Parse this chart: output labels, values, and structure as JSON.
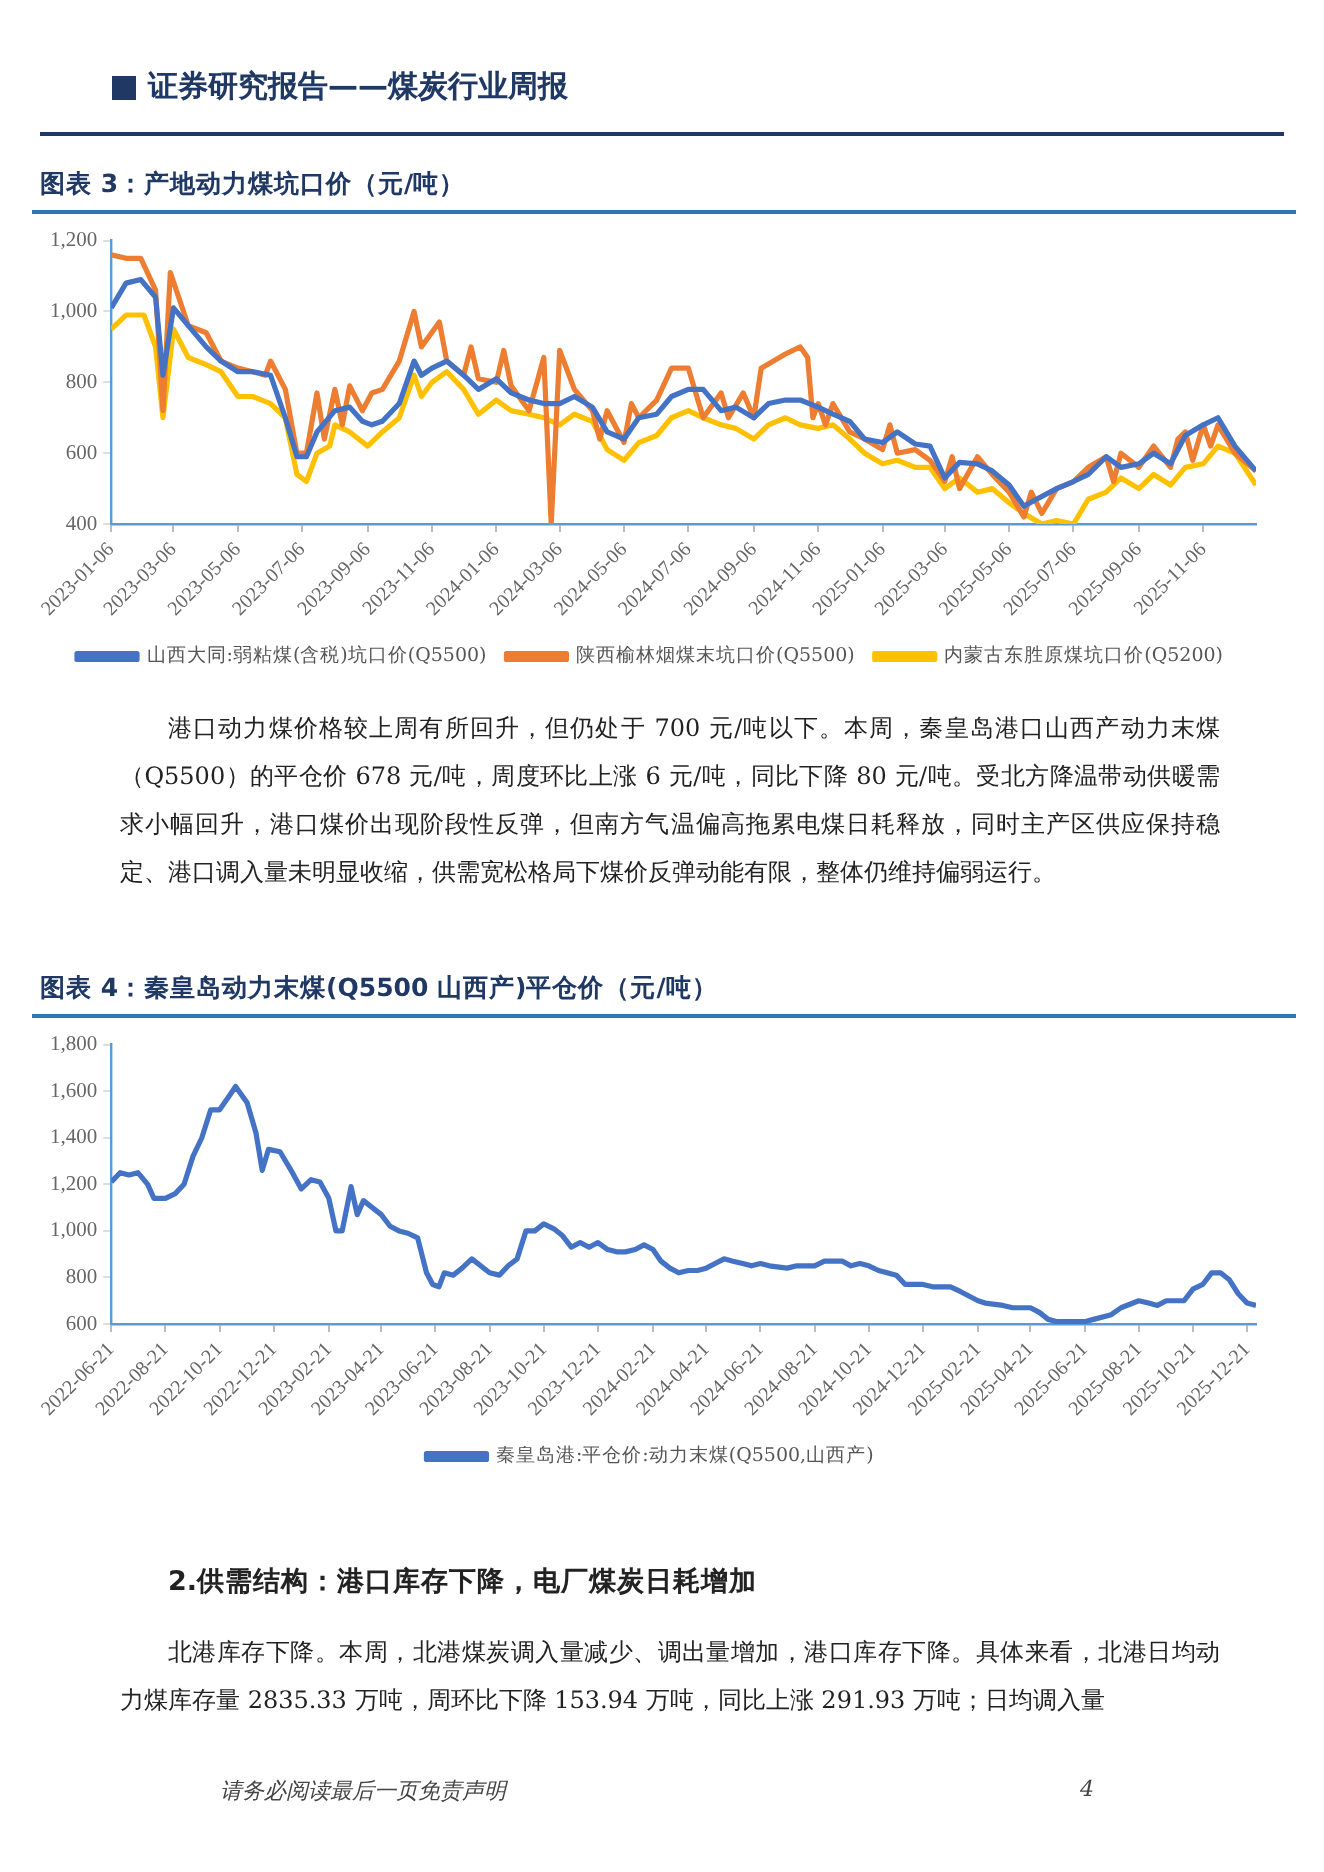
{
  "chart_data": [
    {
      "type": "line",
      "title": "图表 3：产地动力煤坑口价（元/吨）",
      "legend": "bottom",
      "marker": "none",
      "xlim": [
        "2023-01-06",
        "2025-12-26"
      ],
      "xticks": [
        "2023-01-06",
        "2023-03-06",
        "2023-05-06",
        "2023-07-06",
        "2023-09-06",
        "2023-11-06",
        "2024-01-06",
        "2024-03-06",
        "2024-05-06",
        "2024-07-06",
        "2024-09-06",
        "2024-11-06",
        "2025-01-06",
        "2025-03-06",
        "2025-05-06",
        "2025-07-06",
        "2025-09-06",
        "2025-11-06"
      ],
      "ylim": [
        400,
        1200
      ],
      "yticks": [
        {
          "value": 400,
          "label": "400"
        },
        {
          "value": 600,
          "label": "600"
        },
        {
          "value": 800,
          "label": "800"
        },
        {
          "value": 1000,
          "label": "1,000"
        },
        {
          "value": 1200,
          "label": "1,200"
        }
      ],
      "series": [
        {
          "name": "山西大同:弱粘煤(含税)坑口价(Q5500)",
          "color": "#4472c4",
          "x": [
            "2023-01-06",
            "2023-01-20",
            "2023-02-03",
            "2023-02-17",
            "2023-02-24",
            "2023-03-06",
            "2023-03-20",
            "2023-04-06",
            "2023-04-20",
            "2023-05-06",
            "2023-05-20",
            "2023-06-06",
            "2023-06-20",
            "2023-07-01",
            "2023-07-10",
            "2023-07-20",
            "2023-08-06",
            "2023-08-20",
            "2023-09-01",
            "2023-09-10",
            "2023-09-20",
            "2023-10-06",
            "2023-10-20",
            "2023-10-27",
            "2023-11-06",
            "2023-11-20",
            "2023-12-06",
            "2023-12-20",
            "2024-01-06",
            "2024-01-20",
            "2024-02-06",
            "2024-02-20",
            "2024-03-06",
            "2024-03-20",
            "2024-04-06",
            "2024-04-20",
            "2024-05-06",
            "2024-05-20",
            "2024-06-06",
            "2024-06-20",
            "2024-07-06",
            "2024-07-20",
            "2024-08-06",
            "2024-08-20",
            "2024-09-06",
            "2024-09-20",
            "2024-10-06",
            "2024-10-20",
            "2024-11-06",
            "2024-11-20",
            "2024-12-06",
            "2024-12-20",
            "2025-01-06",
            "2025-01-20",
            "2025-02-06",
            "2025-02-20",
            "2025-03-06",
            "2025-03-20",
            "2025-04-06",
            "2025-04-20",
            "2025-05-06",
            "2025-05-20",
            "2025-06-01",
            "2025-06-20",
            "2025-07-06",
            "2025-07-20",
            "2025-08-06",
            "2025-08-20",
            "2025-09-06",
            "2025-09-20",
            "2025-10-06",
            "2025-10-20",
            "2025-11-06",
            "2025-11-20",
            "2025-12-06",
            "2025-12-26"
          ],
          "values": [
            1010,
            1080,
            1090,
            1040,
            820,
            1010,
            960,
            900,
            860,
            830,
            830,
            820,
            700,
            590,
            590,
            660,
            720,
            730,
            690,
            680,
            690,
            740,
            860,
            820,
            840,
            860,
            820,
            780,
            810,
            770,
            750,
            740,
            740,
            760,
            730,
            660,
            640,
            700,
            710,
            760,
            780,
            780,
            720,
            730,
            700,
            740,
            750,
            750,
            730,
            710,
            690,
            640,
            630,
            660,
            626,
            620,
            530,
            574,
            570,
            550,
            510,
            450,
            470,
            500,
            520,
            540,
            590,
            560,
            570,
            600,
            570,
            650,
            680,
            700,
            620,
            550
          ]
        },
        {
          "name": "陕西榆林烟煤末坑口价(Q5500)",
          "color": "#ed7d31",
          "x": [
            "2023-01-06",
            "2023-01-20",
            "2023-02-03",
            "2023-02-17",
            "2023-02-24",
            "2023-03-03",
            "2023-03-20",
            "2023-04-06",
            "2023-04-20",
            "2023-05-06",
            "2023-05-20",
            "2023-06-01",
            "2023-06-06",
            "2023-06-20",
            "2023-07-01",
            "2023-07-10",
            "2023-07-20",
            "2023-07-27",
            "2023-08-06",
            "2023-08-13",
            "2023-08-20",
            "2023-09-01",
            "2023-09-10",
            "2023-09-20",
            "2023-10-06",
            "2023-10-20",
            "2023-10-27",
            "2023-11-13",
            "2023-11-20",
            "2023-12-06",
            "2023-12-13",
            "2023-12-20",
            "2024-01-06",
            "2024-01-13",
            "2024-01-20",
            "2024-02-06",
            "2024-02-20",
            "2024-02-27",
            "2024-03-06",
            "2024-03-20",
            "2024-04-06",
            "2024-04-13",
            "2024-04-20",
            "2024-05-06",
            "2024-05-13",
            "2024-05-20",
            "2024-06-06",
            "2024-06-20",
            "2024-07-06",
            "2024-07-20",
            "2024-08-06",
            "2024-08-13",
            "2024-08-27",
            "2024-09-06",
            "2024-09-13",
            "2024-10-06",
            "2024-10-20",
            "2024-10-27",
            "2024-11-01",
            "2024-11-06",
            "2024-11-13",
            "2024-11-20",
            "2024-12-06",
            "2024-12-20",
            "2025-01-06",
            "2025-01-13",
            "2025-01-20",
            "2025-02-06",
            "2025-02-20",
            "2025-03-06",
            "2025-03-13",
            "2025-03-20",
            "2025-04-06",
            "2025-04-20",
            "2025-05-06",
            "2025-05-20",
            "2025-05-27",
            "2025-06-06",
            "2025-06-20",
            "2025-07-06",
            "2025-07-20",
            "2025-08-06",
            "2025-08-13",
            "2025-08-20",
            "2025-09-06",
            "2025-09-20",
            "2025-10-06",
            "2025-10-13",
            "2025-10-20",
            "2025-10-27",
            "2025-11-06",
            "2025-11-13",
            "2025-11-20",
            "2025-12-06",
            "2025-12-26"
          ],
          "values": [
            1160,
            1150,
            1150,
            1060,
            720,
            1110,
            960,
            940,
            860,
            840,
            830,
            820,
            860,
            780,
            600,
            600,
            770,
            640,
            780,
            680,
            790,
            720,
            770,
            780,
            860,
            1000,
            900,
            970,
            860,
            820,
            900,
            810,
            800,
            890,
            790,
            720,
            870,
            400,
            890,
            780,
            720,
            640,
            720,
            630,
            740,
            700,
            750,
            840,
            840,
            700,
            770,
            700,
            770,
            700,
            840,
            880,
            900,
            870,
            700,
            740,
            680,
            740,
            660,
            640,
            610,
            680,
            600,
            610,
            580,
            520,
            590,
            500,
            590,
            540,
            490,
            420,
            490,
            430,
            500,
            520,
            560,
            590,
            520,
            600,
            560,
            620,
            560,
            640,
            660,
            580,
            680,
            620,
            680,
            600,
            550
          ]
        },
        {
          "name": "内蒙古东胜原煤坑口价(Q5200)",
          "color": "#ffc000",
          "x": [
            "2023-01-06",
            "2023-01-20",
            "2023-02-06",
            "2023-02-17",
            "2023-02-24",
            "2023-03-06",
            "2023-03-20",
            "2023-04-06",
            "2023-04-20",
            "2023-05-06",
            "2023-05-20",
            "2023-06-06",
            "2023-06-20",
            "2023-07-01",
            "2023-07-10",
            "2023-07-20",
            "2023-08-01",
            "2023-08-06",
            "2023-08-20",
            "2023-09-06",
            "2023-09-20",
            "2023-10-06",
            "2023-10-20",
            "2023-10-27",
            "2023-11-06",
            "2023-11-20",
            "2023-12-06",
            "2023-12-20",
            "2024-01-06",
            "2024-01-20",
            "2024-02-06",
            "2024-02-20",
            "2024-03-06",
            "2024-03-20",
            "2024-04-06",
            "2024-04-20",
            "2024-05-06",
            "2024-05-20",
            "2024-06-06",
            "2024-06-20",
            "2024-07-06",
            "2024-07-20",
            "2024-08-06",
            "2024-08-20",
            "2024-09-06",
            "2024-09-20",
            "2024-10-06",
            "2024-10-20",
            "2024-11-06",
            "2024-11-20",
            "2024-12-06",
            "2024-12-20",
            "2025-01-06",
            "2025-01-20",
            "2025-02-06",
            "2025-02-20",
            "2025-03-06",
            "2025-03-20",
            "2025-04-06",
            "2025-04-20",
            "2025-05-06",
            "2025-05-20",
            "2025-06-06",
            "2025-06-20",
            "2025-07-06",
            "2025-07-20",
            "2025-08-06",
            "2025-08-20",
            "2025-09-06",
            "2025-09-20",
            "2025-10-06",
            "2025-10-20",
            "2025-11-06",
            "2025-11-20",
            "2025-12-06",
            "2025-12-26"
          ],
          "values": [
            950,
            990,
            990,
            900,
            700,
            950,
            870,
            850,
            830,
            760,
            760,
            740,
            700,
            540,
            520,
            600,
            620,
            680,
            660,
            620,
            660,
            700,
            820,
            760,
            800,
            830,
            780,
            710,
            750,
            720,
            710,
            700,
            680,
            710,
            690,
            610,
            580,
            630,
            650,
            700,
            720,
            700,
            680,
            670,
            640,
            680,
            700,
            680,
            670,
            680,
            640,
            600,
            570,
            580,
            560,
            560,
            500,
            530,
            490,
            500,
            460,
            430,
            400,
            410,
            400,
            470,
            490,
            530,
            500,
            540,
            510,
            560,
            570,
            620,
            600,
            510
          ]
        }
      ],
      "annotations": [
        "证券研究报告——煤炭行业周报",
        "港口动力煤价格较上周有所回升，但仍处于 700 元/吨以下。本周，秦皇岛港口山西产动力末煤（Q5500）的平仓价 678 元/吨，周度环比上涨 6 元/吨，同比下降 80 元/吨。受北方降温带动供暖需求小幅回升，港口煤价出现阶段性反弹，但南方气温偏高拖累电煤日耗释放，同时主产区供应保持稳定、港口调入量未明显收缩，供需宽松格局下煤价反弹动能有限，整体仍维持偏弱运行。"
      ]
    },
    {
      "type": "line",
      "title": "图表 4：秦皇岛动力末煤(Q5500 山西产)平仓价（元/吨）",
      "legend": "bottom",
      "marker": "none",
      "xlim": [
        "2022-06-21",
        "2025-12-31"
      ],
      "xticks": [
        "2022-06-21",
        "2022-08-21",
        "2022-10-21",
        "2022-12-21",
        "2023-02-21",
        "2023-04-21",
        "2023-06-21",
        "2023-08-21",
        "2023-10-21",
        "2023-12-21",
        "2024-02-21",
        "2024-04-21",
        "2024-06-21",
        "2024-08-21",
        "2024-10-21",
        "2024-12-21",
        "2025-02-21",
        "2025-04-21",
        "2025-06-21",
        "2025-08-21",
        "2025-10-21",
        "2025-12-21"
      ],
      "ylim": [
        600,
        1800
      ],
      "yticks": [
        {
          "value": 600,
          "label": "600"
        },
        {
          "value": 800,
          "label": "800"
        },
        {
          "value": 1000,
          "label": "1,000"
        },
        {
          "value": 1200,
          "label": "1,200"
        },
        {
          "value": 1400,
          "label": "1,400"
        },
        {
          "value": 1600,
          "label": "1,600"
        },
        {
          "value": 1800,
          "label": "1,800"
        }
      ],
      "series": [
        {
          "name": "秦皇岛港:平仓价:动力末煤(Q5500,山西产)",
          "color": "#4472c4",
          "x": [
            "2022-06-21",
            "2022-07-01",
            "2022-07-11",
            "2022-07-21",
            "2022-08-01",
            "2022-08-08",
            "2022-08-21",
            "2022-09-01",
            "2022-09-11",
            "2022-09-21",
            "2022-10-01",
            "2022-10-11",
            "2022-10-21",
            "2022-11-01",
            "2022-11-08",
            "2022-11-21",
            "2022-12-01",
            "2022-12-08",
            "2022-12-15",
            "2022-12-28",
            "2023-01-11",
            "2023-01-21",
            "2023-02-01",
            "2023-02-11",
            "2023-02-21",
            "2023-03-01",
            "2023-03-08",
            "2023-03-18",
            "2023-03-25",
            "2023-04-01",
            "2023-04-11",
            "2023-04-21",
            "2023-05-01",
            "2023-05-11",
            "2023-05-21",
            "2023-06-01",
            "2023-06-11",
            "2023-06-18",
            "2023-06-25",
            "2023-07-01",
            "2023-07-11",
            "2023-07-21",
            "2023-08-01",
            "2023-08-11",
            "2023-08-21",
            "2023-09-01",
            "2023-09-11",
            "2023-09-21",
            "2023-10-01",
            "2023-10-11",
            "2023-10-21",
            "2023-11-01",
            "2023-11-11",
            "2023-11-21",
            "2023-12-01",
            "2023-12-11",
            "2023-12-21",
            "2024-01-01",
            "2024-01-11",
            "2024-01-21",
            "2024-02-01",
            "2024-02-11",
            "2024-02-21",
            "2024-03-01",
            "2024-03-11",
            "2024-03-21",
            "2024-04-01",
            "2024-04-11",
            "2024-04-21",
            "2024-05-01",
            "2024-05-11",
            "2024-05-21",
            "2024-06-01",
            "2024-06-11",
            "2024-06-21",
            "2024-07-01",
            "2024-07-21",
            "2024-08-01",
            "2024-08-21",
            "2024-09-01",
            "2024-09-21",
            "2024-10-01",
            "2024-10-11",
            "2024-10-21",
            "2024-11-01",
            "2024-11-21",
            "2024-12-01",
            "2024-12-11",
            "2024-12-21",
            "2025-01-01",
            "2025-01-21",
            "2025-02-01",
            "2025-02-21",
            "2025-03-01",
            "2025-03-21",
            "2025-04-01",
            "2025-04-21",
            "2025-05-01",
            "2025-05-11",
            "2025-05-21",
            "2025-06-01",
            "2025-06-21",
            "2025-07-01",
            "2025-07-21",
            "2025-08-01",
            "2025-08-21",
            "2025-09-01",
            "2025-09-11",
            "2025-09-21",
            "2025-10-01",
            "2025-10-11",
            "2025-10-21",
            "2025-11-01",
            "2025-11-11",
            "2025-11-21",
            "2025-12-01",
            "2025-12-11",
            "2025-12-21",
            "2025-12-31"
          ],
          "values": [
            1210,
            1250,
            1240,
            1250,
            1200,
            1140,
            1140,
            1160,
            1200,
            1320,
            1400,
            1520,
            1520,
            1580,
            1620,
            1550,
            1420,
            1260,
            1350,
            1340,
            1250,
            1180,
            1220,
            1210,
            1140,
            1000,
            1000,
            1190,
            1070,
            1130,
            1100,
            1070,
            1020,
            1000,
            990,
            970,
            820,
            770,
            760,
            820,
            810,
            840,
            880,
            850,
            820,
            810,
            850,
            880,
            1000,
            1000,
            1030,
            1010,
            980,
            930,
            950,
            930,
            950,
            920,
            910,
            910,
            920,
            940,
            920,
            870,
            840,
            820,
            830,
            830,
            840,
            860,
            880,
            870,
            860,
            850,
            860,
            850,
            840,
            850,
            850,
            870,
            870,
            850,
            860,
            850,
            830,
            810,
            770,
            770,
            770,
            760,
            760,
            740,
            700,
            690,
            680,
            670,
            670,
            650,
            620,
            610,
            610,
            610,
            620,
            640,
            670,
            700,
            690,
            680,
            700,
            700,
            700,
            750,
            770,
            820,
            820,
            790,
            730,
            690,
            680
          ]
        }
      ],
      "annotations": [
        "2.供需结构：港口库存下降，电厂煤炭日耗增加",
        "北港库存下降。本周，北港煤炭调入量减少、调出量增加，港口库存下降。具体来看，北港日均动力煤库存量 2835.33 万吨，周环比下降 153.94 万吨，同比上涨 291.93 万吨；日均调入量",
        "请务必阅读最后一页免责声明",
        "4"
      ]
    }
  ]
}
